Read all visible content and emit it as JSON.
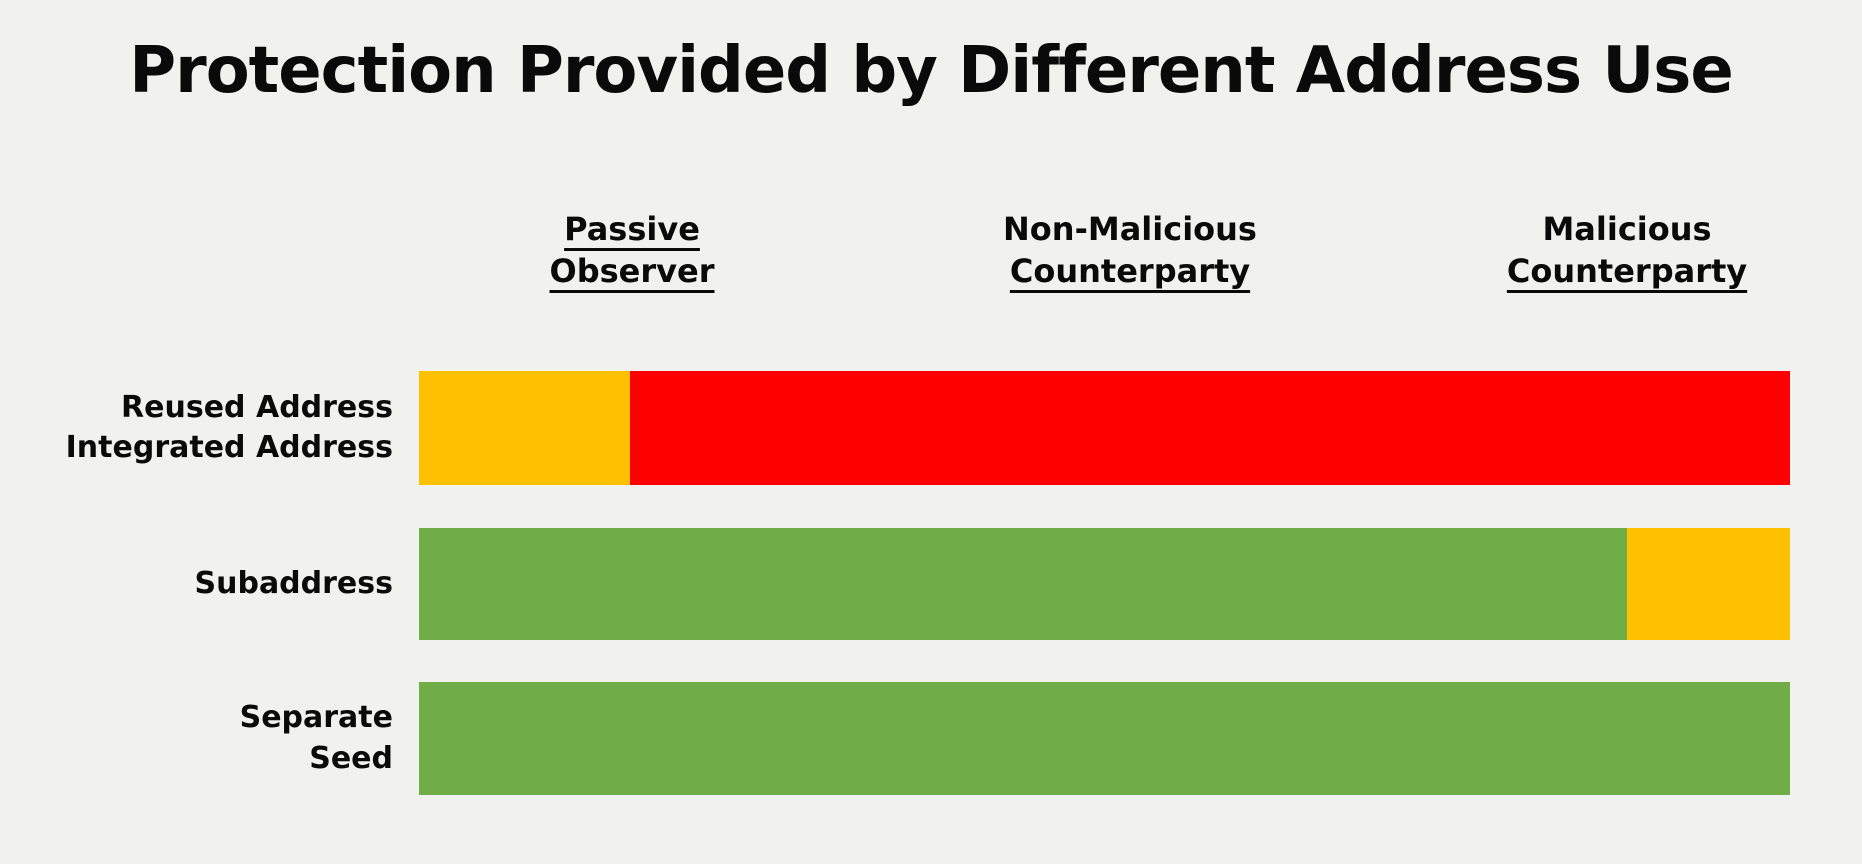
{
  "title": "Protection Provided by Different Address Use",
  "columns": [
    {
      "line1": "Passive",
      "line2": "Observer"
    },
    {
      "line1": "Non-Malicious",
      "line2": "Counterparty"
    },
    {
      "line1": "Malicious",
      "line2": "Counterparty"
    }
  ],
  "rows": [
    {
      "line1": "Reused Address",
      "line2": "Integrated Address"
    },
    {
      "line1": "Subaddress",
      "line2": ""
    },
    {
      "line1": "Separate",
      "line2": "Seed"
    }
  ],
  "chart_data": {
    "type": "bar",
    "orientation": "horizontal",
    "title": "Protection Provided by Different Address Use",
    "column_headers": [
      "Passive Observer",
      "Non-Malicious Counterparty",
      "Malicious Counterparty"
    ],
    "categories": [
      "Reused Address / Integrated Address",
      "Subaddress",
      "Separate Seed"
    ],
    "colors": {
      "yellow": "#FFC000",
      "red": "#FF0000",
      "green": "#70AD47"
    },
    "background": "#F1F1EF",
    "axis": "none",
    "grid": false,
    "legend": "none",
    "rows": [
      {
        "label": "Reused Address / Integrated Address",
        "segments": [
          {
            "color": "yellow",
            "percent": 15.4
          },
          {
            "color": "red",
            "percent": 84.6
          }
        ]
      },
      {
        "label": "Subaddress",
        "segments": [
          {
            "color": "green",
            "percent": 88.1
          },
          {
            "color": "yellow",
            "percent": 11.9
          }
        ]
      },
      {
        "label": "Separate Seed",
        "segments": [
          {
            "color": "green",
            "percent": 100
          }
        ]
      }
    ]
  }
}
